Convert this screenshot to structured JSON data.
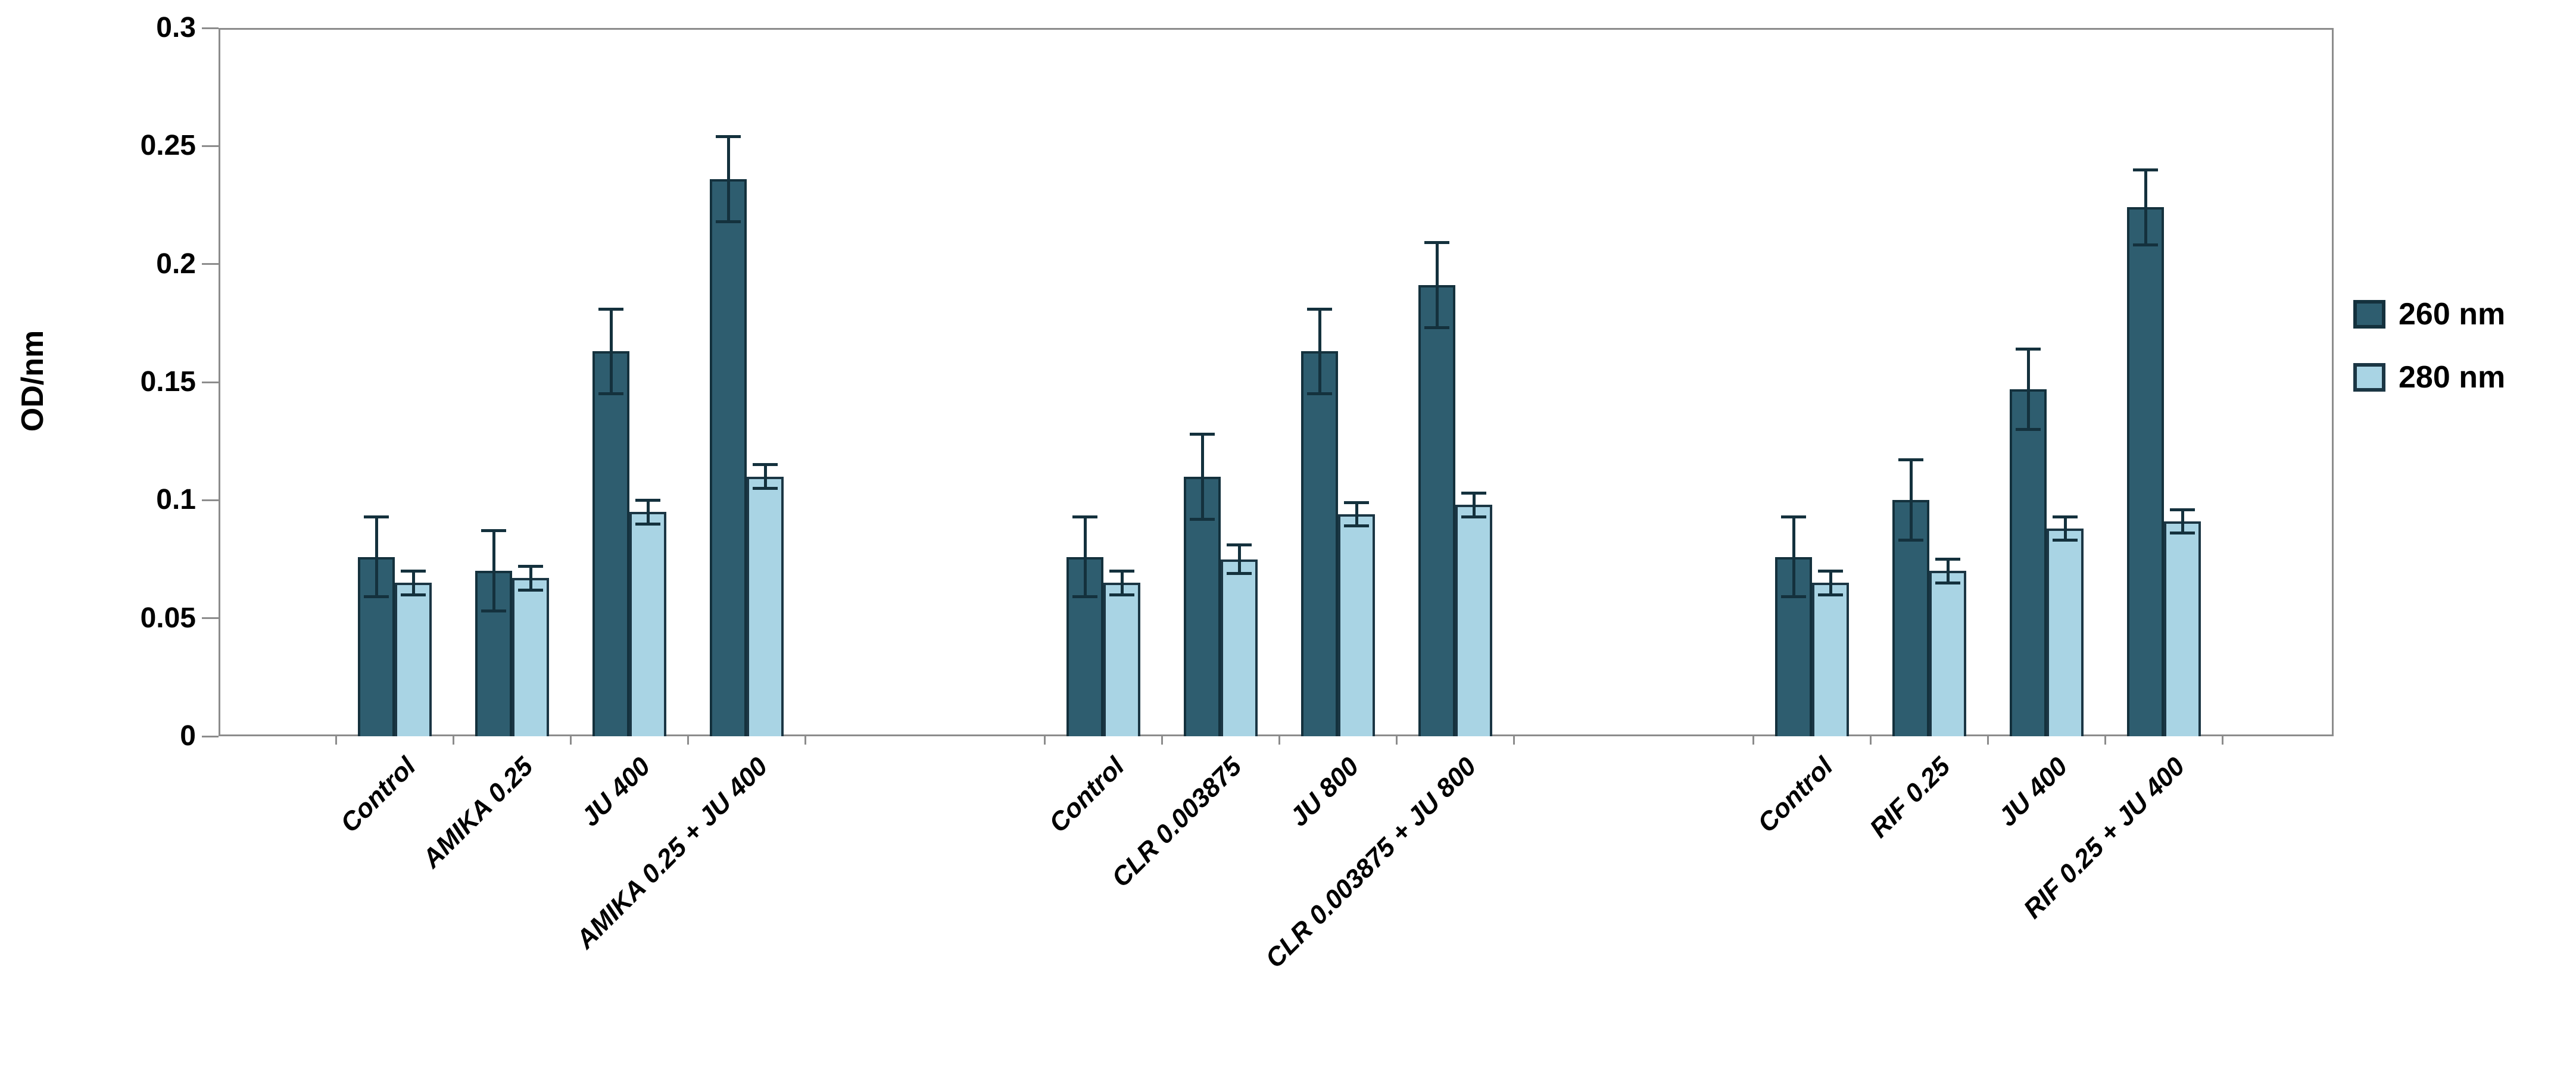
{
  "chart_data": {
    "type": "bar",
    "title": "",
    "xlabel": "",
    "ylabel": "OD/nm",
    "ylim": [
      0,
      0.3
    ],
    "yticks": [
      0,
      0.05,
      0.1,
      0.15,
      0.2,
      0.25,
      0.3
    ],
    "ytick_labels": [
      "0",
      "0.05",
      "0.1",
      "0.15",
      "0.2",
      "0.25",
      "0.3"
    ],
    "grid": false,
    "legend_position": "right",
    "error_bars": true,
    "groups": [
      {
        "categories": [
          "Control",
          "AMIKA 0.25",
          "JU 400",
          "AMIKA 0.25 + JU 400"
        ]
      },
      {
        "categories": [
          "Control",
          "CLR 0.003875",
          "JU 800",
          "CLR 0.003875 + JU 800"
        ]
      },
      {
        "categories": [
          "Control",
          "RIF 0.25",
          "JU 400",
          "RIF 0.25 + JU 400"
        ]
      }
    ],
    "categories": [
      "Control",
      "AMIKA 0.25",
      "JU 400",
      "AMIKA 0.25 + JU 400",
      "Control",
      "CLR 0.003875",
      "JU 800",
      "CLR 0.003875 + JU 800",
      "Control",
      "RIF 0.25",
      "JU 400",
      "RIF 0.25 + JU 400"
    ],
    "series": [
      {
        "name": "260 nm",
        "color": "#2E5D6F",
        "border_color": "#14313D",
        "values": [
          0.076,
          0.07,
          0.163,
          0.236,
          0.076,
          0.11,
          0.163,
          0.191,
          0.076,
          0.1,
          0.147,
          0.224
        ],
        "errors": [
          0.017,
          0.017,
          0.018,
          0.018,
          0.017,
          0.018,
          0.018,
          0.018,
          0.017,
          0.017,
          0.017,
          0.016
        ]
      },
      {
        "name": "280 nm",
        "color": "#A9D4E4",
        "border_color": "#1B3644",
        "values": [
          0.065,
          0.067,
          0.095,
          0.11,
          0.065,
          0.075,
          0.094,
          0.098,
          0.065,
          0.07,
          0.088,
          0.091
        ],
        "errors": [
          0.005,
          0.005,
          0.005,
          0.005,
          0.005,
          0.006,
          0.005,
          0.005,
          0.005,
          0.005,
          0.005,
          0.005
        ]
      }
    ]
  },
  "legend": {
    "items": [
      {
        "label": "260 nm",
        "color": "#2E5D6F"
      },
      {
        "label": "280 nm",
        "color": "#A9D4E4"
      }
    ]
  },
  "colors": {
    "axis_frame": "#8c8c8c",
    "error_bar": "#14313D",
    "text": "#000000",
    "background": "#ffffff"
  }
}
